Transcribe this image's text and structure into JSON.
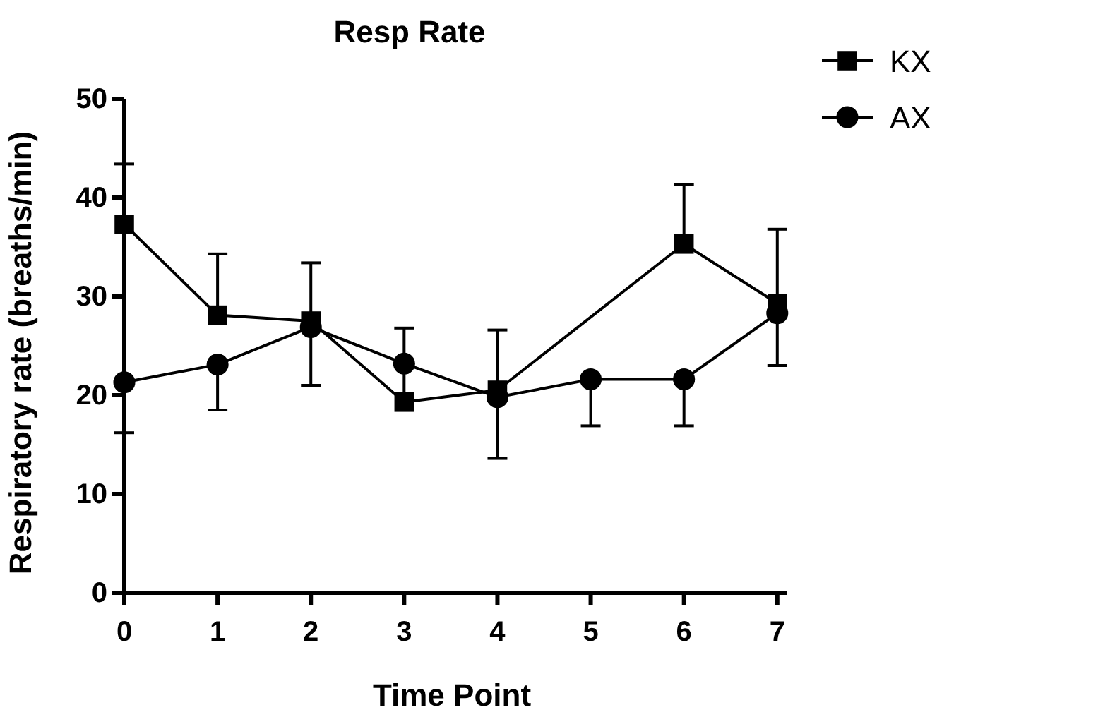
{
  "chart_data": {
    "type": "line",
    "title": "Resp Rate",
    "xlabel": "Time Point",
    "ylabel": "Respiratory rate (breaths/min)",
    "x": [
      0,
      1,
      2,
      3,
      4,
      5,
      6,
      7
    ],
    "series": [
      {
        "name": "KX",
        "color": "#000000",
        "marker": "square",
        "values": [
          37.3,
          28.1,
          27.5,
          19.3,
          20.5,
          null,
          35.3,
          29.3
        ],
        "errors": [
          [
            37.3,
            43.4
          ],
          [
            28.1,
            34.3
          ],
          [
            27.5,
            33.4
          ],
          [
            19.3,
            26.8
          ],
          [
            20.5,
            26.6
          ],
          null,
          [
            35.3,
            41.3
          ],
          [
            29.3,
            36.8
          ]
        ]
      },
      {
        "name": "AX",
        "color": "#000000",
        "marker": "circle",
        "values": [
          21.3,
          23.1,
          26.9,
          23.2,
          19.8,
          21.6,
          21.6,
          28.3
        ],
        "errors": [
          [
            16.2,
            21.3
          ],
          [
            18.5,
            23.1
          ],
          [
            21.0,
            26.9
          ],
          null,
          [
            13.6,
            19.8
          ],
          [
            16.9,
            21.6
          ],
          [
            16.9,
            21.6
          ],
          [
            23.0,
            28.3
          ]
        ]
      }
    ],
    "xlim": [
      0,
      7.1
    ],
    "xticks": [
      0,
      1,
      2,
      3,
      4,
      5,
      6,
      7
    ],
    "ylim": [
      0,
      50
    ],
    "yticks": [
      0,
      10,
      20,
      30,
      40,
      50
    ],
    "grid": false,
    "legend": "top right",
    "line_style": "solid"
  }
}
